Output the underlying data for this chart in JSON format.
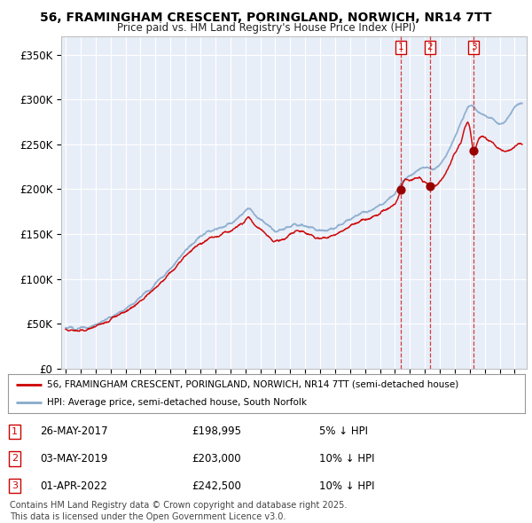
{
  "title": "56, FRAMINGHAM CRESCENT, PORINGLAND, NORWICH, NR14 7TT",
  "subtitle": "Price paid vs. HM Land Registry's House Price Index (HPI)",
  "ylabel_ticks": [
    "£0",
    "£50K",
    "£100K",
    "£150K",
    "£200K",
    "£250K",
    "£300K",
    "£350K"
  ],
  "ytick_values": [
    0,
    50000,
    100000,
    150000,
    200000,
    250000,
    300000,
    350000
  ],
  "ylim": [
    0,
    370000
  ],
  "xlim_start": 1994.7,
  "xlim_end": 2025.8,
  "sale1_date": 2017.4,
  "sale1_price": 198995,
  "sale2_date": 2019.33,
  "sale2_price": 203000,
  "sale3_date": 2022.25,
  "sale3_price": 242500,
  "legend_label_red": "56, FRAMINGHAM CRESCENT, PORINGLAND, NORWICH, NR14 7TT (semi-detached house)",
  "legend_label_blue": "HPI: Average price, semi-detached house, South Norfolk",
  "footnote": "Contains HM Land Registry data © Crown copyright and database right 2025.\nThis data is licensed under the Open Government Licence v3.0.",
  "table_rows": [
    {
      "num": "1",
      "date": "26-MAY-2017",
      "price": "£198,995",
      "hpi": "5% ↓ HPI"
    },
    {
      "num": "2",
      "date": "03-MAY-2019",
      "price": "£203,000",
      "hpi": "10% ↓ HPI"
    },
    {
      "num": "3",
      "date": "01-APR-2022",
      "price": "£242,500",
      "hpi": "10% ↓ HPI"
    }
  ],
  "color_red": "#cc0000",
  "color_blue": "#88aacc",
  "color_vline": "#cc0000",
  "background_chart": "#e8eef8",
  "background_fig": "#ffffff",
  "hpi_keypoints_x": [
    1995,
    1995.5,
    1996,
    1996.5,
    1997,
    1997.5,
    1998,
    1998.5,
    1999,
    1999.5,
    2000,
    2000.5,
    2001,
    2001.5,
    2002,
    2002.5,
    2003,
    2003.5,
    2004,
    2004.5,
    2005,
    2005.5,
    2006,
    2006.5,
    2007,
    2007.25,
    2007.5,
    2008,
    2008.5,
    2009,
    2009.5,
    2010,
    2010.5,
    2011,
    2011.5,
    2012,
    2012.5,
    2013,
    2013.5,
    2014,
    2014.5,
    2015,
    2015.5,
    2016,
    2016.5,
    2017,
    2017.5,
    2018,
    2018.5,
    2019,
    2019.5,
    2020,
    2020.5,
    2021,
    2021.5,
    2022,
    2022.5,
    2023,
    2023.5,
    2024,
    2024.5,
    2025,
    2025.5
  ],
  "hpi_keypoints_y": [
    46000,
    45000,
    44500,
    46000,
    49000,
    53000,
    57000,
    62000,
    67000,
    73000,
    80000,
    87000,
    95000,
    103000,
    112000,
    122000,
    132000,
    140000,
    147000,
    152000,
    155000,
    158000,
    162000,
    167000,
    175000,
    178000,
    174000,
    167000,
    160000,
    153000,
    155000,
    158000,
    162000,
    160000,
    157000,
    154000,
    155000,
    157000,
    162000,
    167000,
    172000,
    175000,
    178000,
    182000,
    188000,
    195000,
    208000,
    215000,
    220000,
    225000,
    222000,
    228000,
    240000,
    258000,
    278000,
    292000,
    288000,
    282000,
    278000,
    272000,
    278000,
    290000,
    295000
  ],
  "price_keypoints_x": [
    1995,
    1995.5,
    1996,
    1996.5,
    1997,
    1997.5,
    1998,
    1998.5,
    1999,
    1999.5,
    2000,
    2000.5,
    2001,
    2001.5,
    2002,
    2002.5,
    2003,
    2003.5,
    2004,
    2004.5,
    2005,
    2005.5,
    2006,
    2006.5,
    2007,
    2007.25,
    2007.5,
    2008,
    2008.5,
    2009,
    2009.5,
    2010,
    2010.5,
    2011,
    2011.5,
    2012,
    2012.5,
    2013,
    2013.5,
    2014,
    2014.5,
    2015,
    2015.5,
    2016,
    2016.5,
    2017,
    2017.4,
    2017.5,
    2018,
    2018.5,
    2019,
    2019.33,
    2019.5,
    2020,
    2020.5,
    2021,
    2021.5,
    2022,
    2022.25,
    2022.5,
    2023,
    2023.5,
    2024,
    2024.5,
    2025,
    2025.5
  ],
  "price_keypoints_y": [
    44000,
    43000,
    42500,
    44000,
    47000,
    51000,
    55000,
    60000,
    64000,
    70000,
    76000,
    83000,
    90000,
    98000,
    107000,
    116000,
    125000,
    133000,
    139000,
    144000,
    147000,
    150000,
    154000,
    158000,
    165000,
    168000,
    162000,
    155000,
    148000,
    142000,
    145000,
    149000,
    153000,
    151000,
    148000,
    145000,
    147000,
    149000,
    154000,
    159000,
    163000,
    166000,
    169000,
    173000,
    178000,
    184000,
    198995,
    205000,
    210000,
    214000,
    208000,
    203000,
    202000,
    208000,
    222000,
    240000,
    258000,
    268000,
    242500,
    252000,
    258000,
    252000,
    245000,
    242000,
    248000,
    250000
  ]
}
